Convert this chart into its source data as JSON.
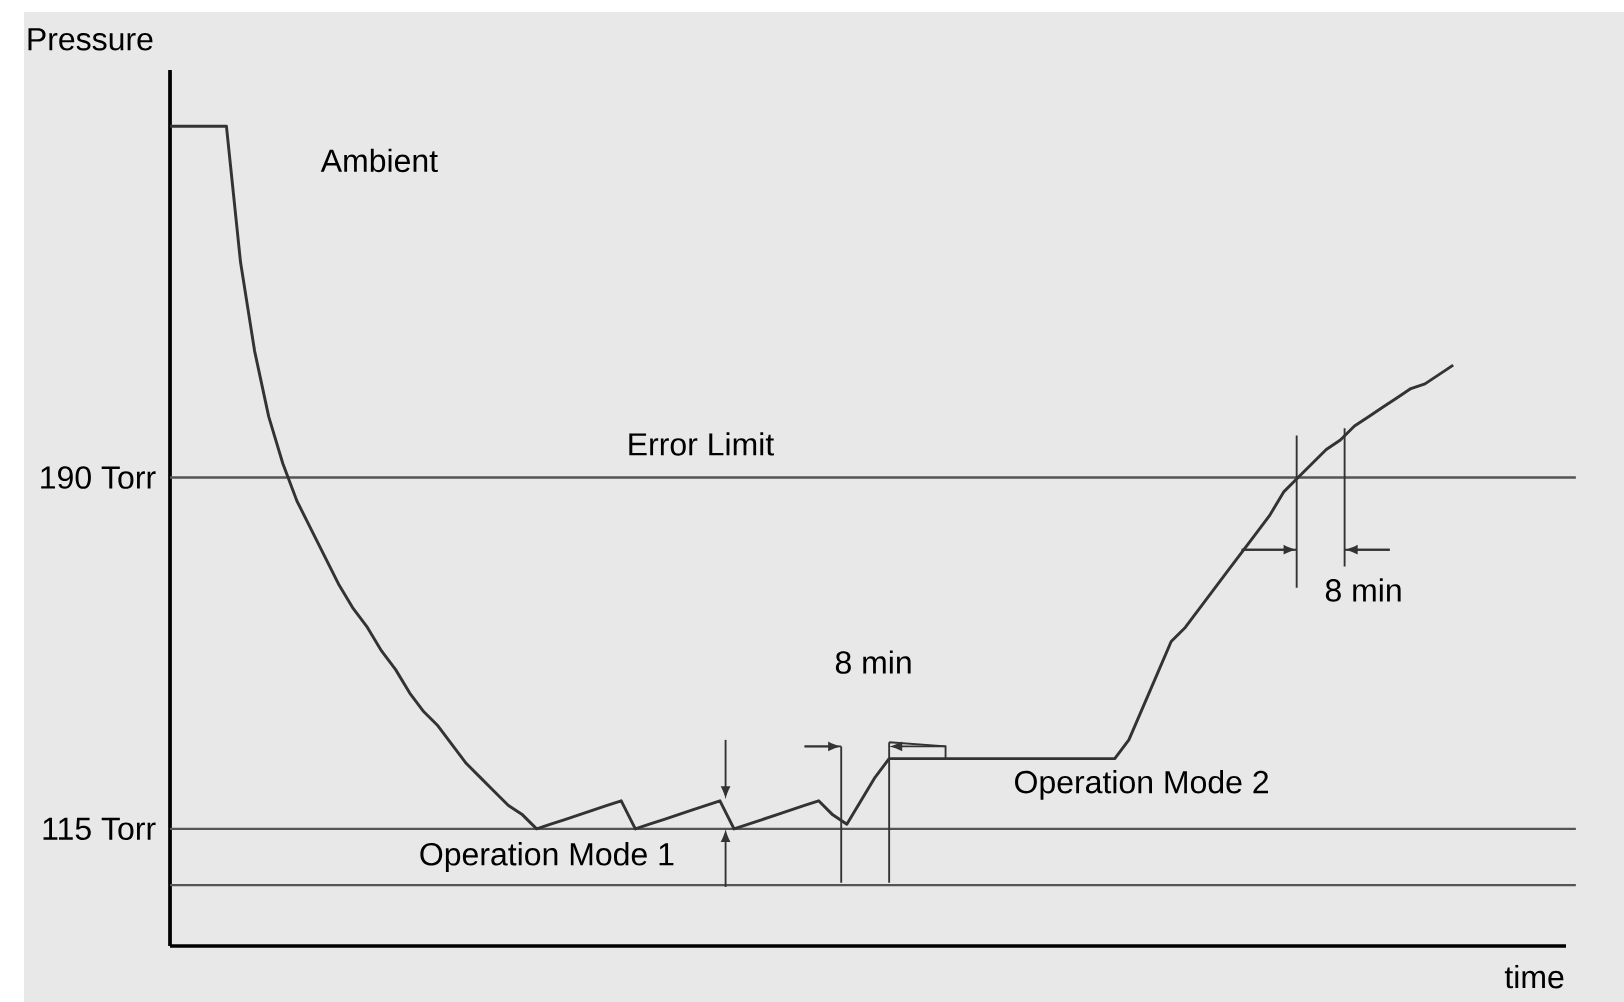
{
  "chart_data": {
    "type": "line",
    "ylabel": "Pressure",
    "xlabel": "time",
    "categories": [
      null,
      null,
      null,
      null,
      null,
      null,
      null,
      null,
      null,
      null,
      null,
      null,
      null,
      null,
      null,
      null,
      null,
      null,
      null,
      null,
      null,
      null,
      null,
      null,
      null,
      null,
      null,
      null,
      null,
      null,
      null,
      null,
      null,
      null,
      null,
      null,
      null,
      null,
      null,
      null,
      null,
      null,
      null,
      null,
      null,
      null,
      null,
      null,
      null,
      null,
      null,
      null,
      null,
      null,
      null,
      null,
      null,
      null,
      null,
      null,
      null,
      null,
      null,
      null,
      null,
      null,
      null,
      null,
      null,
      null,
      null,
      null,
      null,
      null,
      null,
      null,
      null,
      null,
      null,
      null,
      null,
      null,
      null,
      null,
      null,
      null,
      null,
      null,
      null,
      null,
      null,
      null,
      null,
      null,
      null,
      null,
      null,
      null,
      null,
      null
    ],
    "series": [
      {
        "color": "#333333",
        "values": [
          265,
          265,
          265,
          265,
          265,
          236,
          217,
          203,
          193,
          185,
          179,
          173,
          167,
          162,
          158,
          153,
          149,
          144,
          140,
          137,
          133,
          129,
          126,
          123,
          120,
          118,
          115,
          116,
          117,
          118,
          119,
          120,
          121,
          115,
          116,
          117,
          118,
          119,
          120,
          121,
          115,
          116,
          117,
          118,
          119,
          120,
          121,
          118,
          116,
          121,
          126,
          130,
          130,
          130,
          130,
          130,
          130,
          130,
          130,
          130,
          130,
          130,
          130,
          130,
          130,
          130,
          130,
          130,
          134,
          141,
          148,
          155,
          158,
          162,
          166,
          170,
          174,
          178,
          182,
          187,
          190,
          193,
          196,
          198,
          201,
          203,
          205,
          207,
          209,
          210,
          212,
          214,
          null,
          null,
          null,
          null,
          null,
          null,
          null,
          null
        ]
      }
    ],
    "ylim": [
      90,
      277
    ],
    "yticks": [
      {
        "value": 190,
        "label": "190 Torr"
      },
      {
        "value": 115,
        "label": "115 Torr"
      }
    ],
    "tick_labels": "y",
    "marker": "none",
    "line_style": "solid",
    "ref_lines": [
      {
        "axis": "y",
        "value": 190,
        "label": "Error Limit",
        "color": "#555555"
      },
      {
        "axis": "y",
        "value": 115,
        "color": "#555555"
      },
      {
        "axis": "y",
        "value": 103,
        "color": "#555555"
      }
    ],
    "annotations": [
      "Ambient",
      "Operation Mode 1",
      "Operation Mode 2",
      "8 min",
      "8 min"
    ]
  }
}
